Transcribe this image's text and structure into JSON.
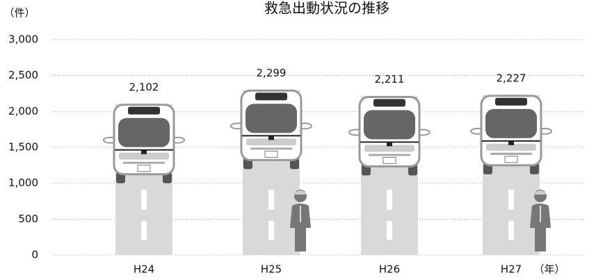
{
  "chart_data": {
    "type": "bar",
    "title": "救急出動状況の推移",
    "y_unit": "（件）",
    "x_unit": "（年）",
    "categories": [
      "H24",
      "H25",
      "H26",
      "H27"
    ],
    "values": [
      2102,
      2299,
      2211,
      2227
    ],
    "value_labels": [
      "2,102",
      "2,299",
      "2,211",
      "2,227"
    ],
    "color": "#d9d9d9",
    "ylim": [
      0,
      3000
    ],
    "yticks": [
      0,
      500,
      {
        "value": 1000,
        "label": "1,000"
      },
      {
        "value": 1500,
        "label": "1,500"
      },
      {
        "value": 2000,
        "label": "2,000"
      },
      {
        "value": 2500,
        "label": "2,500"
      },
      {
        "value": 3000,
        "label": "3,000"
      }
    ],
    "grid": true
  }
}
